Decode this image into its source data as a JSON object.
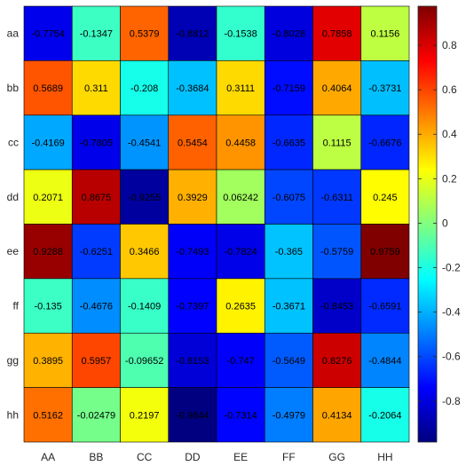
{
  "chart_data": {
    "type": "heatmap",
    "title": "",
    "xlabel": "",
    "ylabel": "",
    "x_categories": [
      "AA",
      "BB",
      "CC",
      "DD",
      "EE",
      "FF",
      "GG",
      "HH"
    ],
    "y_categories": [
      "aa",
      "bb",
      "cc",
      "dd",
      "ee",
      "ff",
      "gg",
      "hh"
    ],
    "values": [
      [
        -0.7754,
        -0.1347,
        0.5379,
        -0.8812,
        -0.1538,
        -0.8028,
        0.7858,
        0.1156
      ],
      [
        0.5689,
        0.311,
        -0.208,
        -0.3684,
        0.3111,
        -0.7159,
        0.4064,
        -0.3731
      ],
      [
        -0.4169,
        -0.7805,
        -0.4541,
        0.5454,
        0.4458,
        -0.6635,
        0.1115,
        -0.6676
      ],
      [
        0.2071,
        0.8675,
        -0.9255,
        0.3929,
        0.06242,
        -0.6075,
        -0.6311,
        0.245
      ],
      [
        0.9288,
        -0.6251,
        0.3466,
        -0.7493,
        -0.7824,
        -0.365,
        -0.5759,
        0.9759
      ],
      [
        -0.135,
        -0.4676,
        -0.1409,
        -0.7397,
        0.2635,
        -0.3671,
        -0.8453,
        -0.6591
      ],
      [
        0.3895,
        0.5957,
        -0.09652,
        -0.8153,
        -0.747,
        -0.5649,
        0.8276,
        -0.4844
      ],
      [
        0.5162,
        -0.02479,
        0.2197,
        -0.9844,
        -0.7314,
        -0.4979,
        0.4134,
        -0.2064
      ]
    ],
    "cell_labels": [
      [
        "-0.7754",
        "-0.1347",
        "0.5379",
        "-0.8812",
        "-0.1538",
        "-0.8028",
        "0.7858",
        "0.1156"
      ],
      [
        "0.5689",
        "0.311",
        "-0.208",
        "-0.3684",
        "0.3111",
        "-0.7159",
        "0.4064",
        "-0.3731"
      ],
      [
        "-0.4169",
        "-0.7805",
        "-0.4541",
        "0.5454",
        "0.4458",
        "-0.6635",
        "0.1115",
        "-0.6676"
      ],
      [
        "0.2071",
        "0.8675",
        "-0.9255",
        "0.3929",
        "0.06242",
        "-0.6075",
        "-0.6311",
        "0.245"
      ],
      [
        "0.9288",
        "-0.6251",
        "0.3466",
        "-0.7493",
        "-0.7824",
        "-0.365",
        "-0.5759",
        "0.9759"
      ],
      [
        "-0.135",
        "-0.4676",
        "-0.1409",
        "-0.7397",
        "0.2635",
        "-0.3671",
        "-0.8453",
        "-0.6591"
      ],
      [
        "0.3895",
        "0.5957",
        "-0.09652",
        "-0.8153",
        "-0.747",
        "-0.5649",
        "0.8276",
        "-0.4844"
      ],
      [
        "0.5162",
        "-0.02479",
        "0.2197",
        "-0.9844",
        "-0.7314",
        "-0.4979",
        "0.4134",
        "-0.2064"
      ]
    ],
    "colormap": "jet",
    "color_limits": [
      -0.9844,
      0.9759
    ],
    "colorbar": {
      "position": "right",
      "ticks": [
        -0.8,
        -0.6,
        -0.4,
        -0.2,
        0,
        0.2,
        0.4,
        0.6,
        0.8
      ],
      "tick_labels": [
        "-0.8",
        "-0.6",
        "-0.4",
        "-0.2",
        "0",
        "0.2",
        "0.4",
        "0.6",
        "0.8"
      ]
    },
    "grid": true
  }
}
